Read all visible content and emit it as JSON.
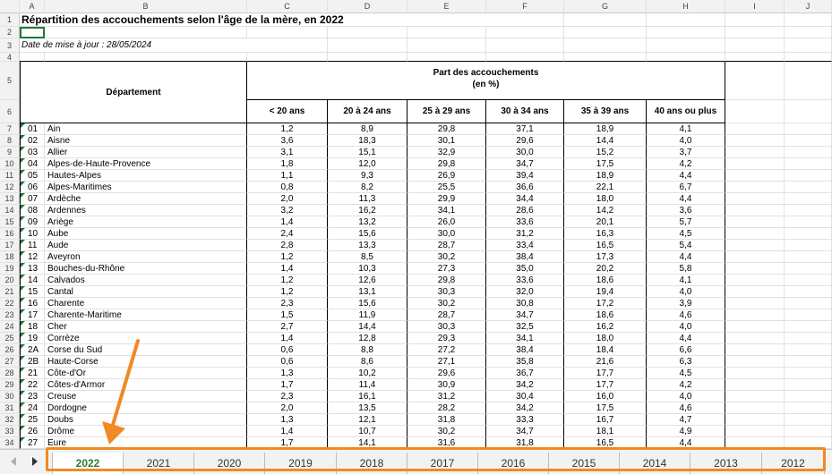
{
  "columns": [
    "A",
    "B",
    "C",
    "D",
    "E",
    "F",
    "G",
    "H",
    "I",
    "J"
  ],
  "title": "Répartition des accouchements selon l'âge de la mère, en 2022",
  "date_update": "Date de mise à jour : 28/05/2024",
  "header": {
    "departement": "Département",
    "part_line1": "Part des accouchements",
    "part_line2": "(en %)",
    "age_groups": [
      "< 20 ans",
      "20 à 24 ans",
      "25 à 29 ans",
      "30 à 34 ans",
      "35 à 39 ans",
      "40 ans ou plus"
    ]
  },
  "rows": [
    {
      "code": "01",
      "name": "Ain",
      "values": [
        "1,2",
        "8,9",
        "29,8",
        "37,1",
        "18,9",
        "4,1"
      ]
    },
    {
      "code": "02",
      "name": "Aisne",
      "values": [
        "3,6",
        "18,3",
        "30,1",
        "29,6",
        "14,4",
        "4,0"
      ]
    },
    {
      "code": "03",
      "name": "Allier",
      "values": [
        "3,1",
        "15,1",
        "32,9",
        "30,0",
        "15,2",
        "3,7"
      ]
    },
    {
      "code": "04",
      "name": "Alpes-de-Haute-Provence",
      "values": [
        "1,8",
        "12,0",
        "29,8",
        "34,7",
        "17,5",
        "4,2"
      ]
    },
    {
      "code": "05",
      "name": "Hautes-Alpes",
      "values": [
        "1,1",
        "9,3",
        "26,9",
        "39,4",
        "18,9",
        "4,4"
      ]
    },
    {
      "code": "06",
      "name": "Alpes-Maritimes",
      "values": [
        "0,8",
        "8,2",
        "25,5",
        "36,6",
        "22,1",
        "6,7"
      ]
    },
    {
      "code": "07",
      "name": "Ardèche",
      "values": [
        "2,0",
        "11,3",
        "29,9",
        "34,4",
        "18,0",
        "4,4"
      ]
    },
    {
      "code": "08",
      "name": "Ardennes",
      "values": [
        "3,2",
        "16,2",
        "34,1",
        "28,6",
        "14,2",
        "3,6"
      ]
    },
    {
      "code": "09",
      "name": "Ariège",
      "values": [
        "1,4",
        "13,2",
        "26,0",
        "33,6",
        "20,1",
        "5,7"
      ]
    },
    {
      "code": "10",
      "name": "Aube",
      "values": [
        "2,4",
        "15,6",
        "30,0",
        "31,2",
        "16,3",
        "4,5"
      ]
    },
    {
      "code": "11",
      "name": "Aude",
      "values": [
        "2,8",
        "13,3",
        "28,7",
        "33,4",
        "16,5",
        "5,4"
      ]
    },
    {
      "code": "12",
      "name": "Aveyron",
      "values": [
        "1,2",
        "8,5",
        "30,2",
        "38,4",
        "17,3",
        "4,4"
      ]
    },
    {
      "code": "13",
      "name": "Bouches-du-Rhône",
      "values": [
        "1,4",
        "10,3",
        "27,3",
        "35,0",
        "20,2",
        "5,8"
      ]
    },
    {
      "code": "14",
      "name": "Calvados",
      "values": [
        "1,2",
        "12,6",
        "29,8",
        "33,6",
        "18,6",
        "4,1"
      ]
    },
    {
      "code": "15",
      "name": "Cantal",
      "values": [
        "1,2",
        "13,1",
        "30,3",
        "32,0",
        "19,4",
        "4,0"
      ]
    },
    {
      "code": "16",
      "name": "Charente",
      "values": [
        "2,3",
        "15,6",
        "30,2",
        "30,8",
        "17,2",
        "3,9"
      ]
    },
    {
      "code": "17",
      "name": "Charente-Maritime",
      "values": [
        "1,5",
        "11,9",
        "28,7",
        "34,7",
        "18,6",
        "4,6"
      ]
    },
    {
      "code": "18",
      "name": "Cher",
      "values": [
        "2,7",
        "14,4",
        "30,3",
        "32,5",
        "16,2",
        "4,0"
      ]
    },
    {
      "code": "19",
      "name": "Corrèze",
      "values": [
        "1,4",
        "12,8",
        "29,3",
        "34,1",
        "18,0",
        "4,4"
      ]
    },
    {
      "code": "2A",
      "name": "Corse du Sud",
      "values": [
        "0,6",
        "8,8",
        "27,2",
        "38,4",
        "18,4",
        "6,6"
      ]
    },
    {
      "code": "2B",
      "name": "Haute-Corse",
      "values": [
        "0,6",
        "8,6",
        "27,1",
        "35,8",
        "21,6",
        "6,3"
      ]
    },
    {
      "code": "21",
      "name": "Côte-d'Or",
      "values": [
        "1,3",
        "10,2",
        "29,6",
        "36,7",
        "17,7",
        "4,5"
      ]
    },
    {
      "code": "22",
      "name": "Côtes-d'Armor",
      "values": [
        "1,7",
        "11,4",
        "30,9",
        "34,2",
        "17,7",
        "4,2"
      ]
    },
    {
      "code": "23",
      "name": "Creuse",
      "values": [
        "2,3",
        "16,1",
        "31,2",
        "30,4",
        "16,0",
        "4,0"
      ]
    },
    {
      "code": "24",
      "name": "Dordogne",
      "values": [
        "2,0",
        "13,5",
        "28,2",
        "34,2",
        "17,5",
        "4,6"
      ]
    },
    {
      "code": "25",
      "name": "Doubs",
      "values": [
        "1,3",
        "12,1",
        "31,8",
        "33,3",
        "16,7",
        "4,7"
      ]
    },
    {
      "code": "26",
      "name": "Drôme",
      "values": [
        "1,4",
        "10,7",
        "30,2",
        "34,7",
        "18,1",
        "4,9"
      ]
    },
    {
      "code": "27",
      "name": "Eure",
      "values": [
        "1,7",
        "14,1",
        "31,6",
        "31,8",
        "16,5",
        "4,4"
      ]
    }
  ],
  "row_numbers": [
    "1",
    "2",
    "3",
    "4",
    "5",
    "6",
    "7",
    "8",
    "9",
    "10",
    "11",
    "12",
    "13",
    "14",
    "15",
    "16",
    "17",
    "18",
    "19",
    "20",
    "21",
    "22",
    "23",
    "24",
    "25",
    "26",
    "27",
    "28",
    "29",
    "30",
    "31",
    "32",
    "33",
    "34"
  ],
  "sheet_tabs": [
    "2022",
    "2021",
    "2020",
    "2019",
    "2018",
    "2017",
    "2016",
    "2015",
    "2014",
    "2013",
    "2012"
  ],
  "active_tab": "2022",
  "colors": {
    "accent_orange": "#f08a24",
    "active_tab_green": "#2e7d32"
  }
}
